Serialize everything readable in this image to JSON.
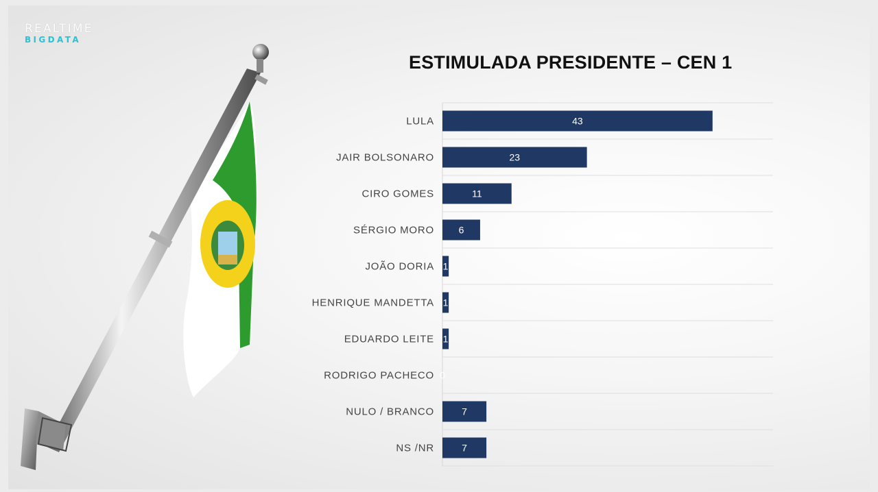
{
  "logo": {
    "line1": "REALTIME",
    "line2": "BIGDATA",
    "line1_color": "#ffffff",
    "line2_color": "#29c3d6"
  },
  "flag_art": {
    "icon": "rio-grande-do-norte-flag-on-pole"
  },
  "chart_data": {
    "type": "bar",
    "orientation": "horizontal",
    "title": "ESTIMULADA PRESIDENTE – CEN 1",
    "categories": [
      "LULA",
      "JAIR BOLSONARO",
      "CIRO GOMES",
      "SÉRGIO MORO",
      "JOÃO DORIA",
      "HENRIQUE MANDETTA",
      "EDUARDO LEITE",
      "RODRIGO PACHECO",
      "NULO / BRANCO",
      "NS /NR"
    ],
    "values": [
      43,
      23,
      11,
      6,
      1,
      1,
      1,
      0,
      7,
      7
    ],
    "data_labels": [
      "43",
      "23",
      "11",
      "6",
      "1",
      "1",
      "1",
      "0",
      "7",
      "7"
    ],
    "xlim": [
      0,
      50
    ],
    "bar_color": "#1f3864",
    "label_color": "#ffffff",
    "grid": "horizontal separators"
  }
}
